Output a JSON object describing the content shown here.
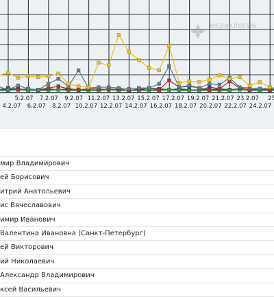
{
  "chart_data": {
    "type": "line",
    "x_upper_labels": [
      "5.2.07",
      "7.2.07",
      "9.2.07",
      "11.2.07",
      "13.2.07",
      "15.2.07",
      "17.2.07",
      "19.2.07",
      "21.2.07",
      "23.2.07",
      "25."
    ],
    "x_lower_labels": [
      "4.2.07",
      "6.2.07",
      "8.2.07",
      "10.2.07",
      "12.2.07",
      "14.2.07",
      "16.2.07",
      "18.2.07",
      "20.2.07",
      "22.2.07",
      "24.2.07"
    ],
    "ylim": [
      0,
      10
    ],
    "grid": true,
    "series": [
      {
        "color": "#e8c21e",
        "values": [
          1.8,
          2.1,
          1.5,
          1.7,
          1.6,
          1.7,
          2.0,
          0.8,
          0.5,
          0.4,
          3.3,
          3.0,
          6.6,
          4.6,
          3.6,
          2.7,
          2.4,
          5.3,
          0.9,
          1.1,
          1.0,
          1.3,
          1.8,
          1.4,
          1.6,
          0.6,
          1.0,
          0.4,
          0.3
        ]
      },
      {
        "color": "#5d7f93",
        "values": [
          0.5,
          0.1,
          0.6,
          0.2,
          0.1,
          0.8,
          1.4,
          0.5,
          2.4,
          0.3,
          0.4,
          0.4,
          0.3,
          0.2,
          0.3,
          0.3,
          0.8,
          2.9,
          0.4,
          0.6,
          0.3,
          0.8,
          0.7,
          1.5,
          0.4,
          0.3,
          0.2,
          0.3,
          0.1
        ]
      },
      {
        "color": "#b83232",
        "values": [
          0.1,
          0.2,
          0.1,
          0.2,
          0.1,
          0.3,
          0.5,
          0.2,
          0.1,
          0.2,
          0.2,
          0.1,
          0.2,
          0.0,
          0.2,
          0.3,
          0.1,
          1.2,
          0.4,
          0.5,
          0.3,
          0.1,
          0.2,
          1.1,
          0.3,
          0.1,
          0.2,
          0.1,
          0.3
        ]
      },
      {
        "color": "#3f9a44",
        "values": [
          0.0,
          0.0,
          0.1,
          0.0,
          0.0,
          0.0,
          0.1,
          0.0,
          0.0,
          0.0,
          0.0,
          0.1,
          0.0,
          0.0,
          0.0,
          0.0,
          0.0,
          0.1,
          0.0,
          0.0,
          0.0,
          0.0,
          0.0,
          0.0,
          0.1,
          0.0,
          0.0,
          0.0,
          0.0
        ]
      },
      {
        "color": "#28507a",
        "values": [
          0.1,
          0.3,
          0.2,
          0.1,
          0.0,
          0.2,
          0.1,
          0.2,
          0.1,
          0.0,
          0.1,
          0.2,
          0.1,
          0.0,
          0.1,
          0.3,
          0.2,
          0.1,
          0.2,
          0.1,
          0.0,
          0.4,
          0.2,
          0.1,
          0.2,
          0.0,
          0.1,
          0.0,
          0.1
        ]
      }
    ]
  },
  "watermark": {
    "text": "МЕДИАЛОГИЯ"
  },
  "legend": [
    "мир Владимирович",
    "ей Борисович",
    "итрий Анатольевич",
    "ис Вячеславович",
    "имир Иванович",
    "Валентина Ивановна (Санкт-Петербург)",
    "ей Викторович",
    "ий Николаевич",
    "Александр Владимирович",
    "ксей Васильевич"
  ]
}
